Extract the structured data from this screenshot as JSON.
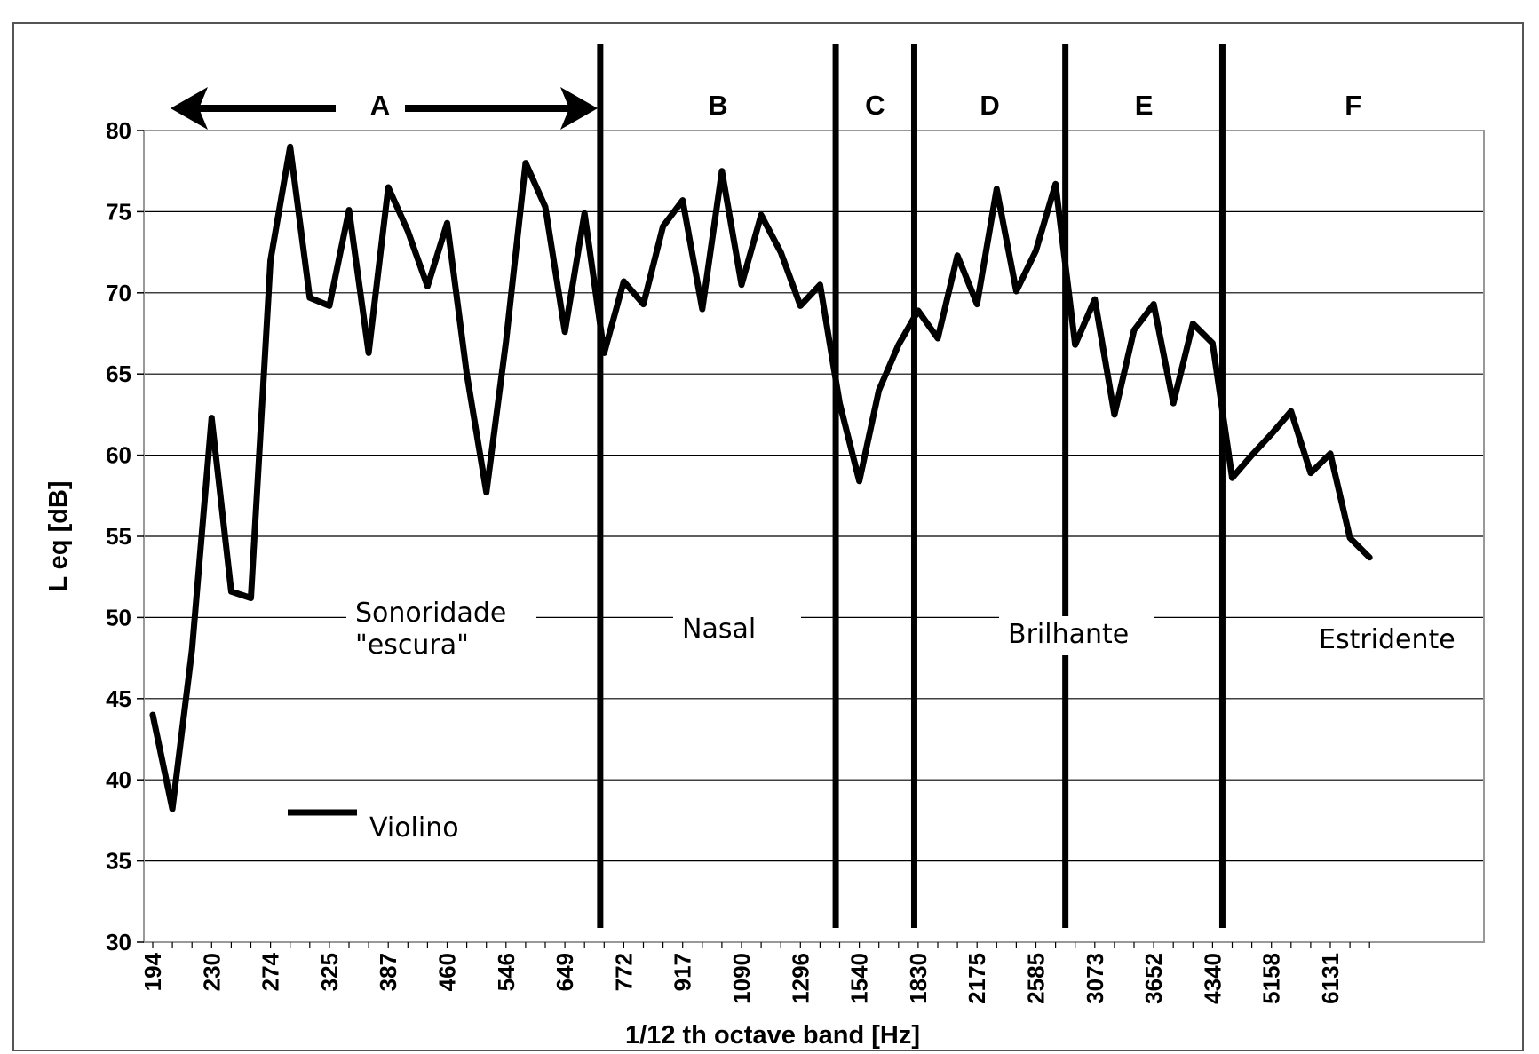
{
  "chart_data": {
    "type": "line",
    "xlabel": "1/12 th octave band [Hz]",
    "ylabel": "L eq [dB]",
    "ylim": [
      30,
      80
    ],
    "yticks": [
      30,
      35,
      40,
      45,
      50,
      55,
      60,
      65,
      70,
      75,
      80
    ],
    "grid": "horizontal",
    "x_tick_labels": [
      "194",
      "230",
      "274",
      "325",
      "387",
      "460",
      "546",
      "649",
      "772",
      "917",
      "1090",
      "1296",
      "1540",
      "1830",
      "2175",
      "2585",
      "3073",
      "3652",
      "4340",
      "5158",
      "6131"
    ],
    "legend": "lower-left",
    "series": [
      {
        "name": "Violino",
        "color": "#000000",
        "values": [
          44,
          38.2,
          48,
          62.3,
          51.6,
          51.2,
          72,
          79,
          69.7,
          69.2,
          75.1,
          66.3,
          76.5,
          73.8,
          70.4,
          74.3,
          65,
          57.7,
          67,
          78,
          75.3,
          67.6,
          74.9,
          66.3,
          70.7,
          69.3,
          74.1,
          75.7,
          69,
          77.5,
          70.5,
          74.8,
          72.5,
          69.2,
          70.5,
          63.2,
          58.4,
          64,
          66.8,
          68.9,
          67.2,
          72.3,
          69.3,
          76.4,
          70.1,
          72.6,
          76.7,
          66.8,
          69.6,
          62.5,
          67.7,
          69.3,
          63.2,
          68.1,
          66.9,
          58.6,
          60,
          61.3,
          62.7,
          58.9,
          60.1,
          54.9,
          53.7
        ]
      }
    ],
    "regions": [
      {
        "label": "A",
        "description": "Sonoridade \"escura\""
      },
      {
        "label": "B",
        "description": "Nasal"
      },
      {
        "label": "C",
        "description": ""
      },
      {
        "label": "D",
        "description": "Brilhante"
      },
      {
        "label": "E",
        "description": ""
      },
      {
        "label": "F",
        "description": "Estridente"
      }
    ],
    "region_boundaries_x_index": [
      22.8,
      34.8,
      38.8,
      46.5,
      54.5
    ]
  },
  "legend_label": "Violino",
  "colors": {
    "line": "#000000",
    "grid": "#000000",
    "plot_border": "#999999",
    "frame": "#555555"
  }
}
